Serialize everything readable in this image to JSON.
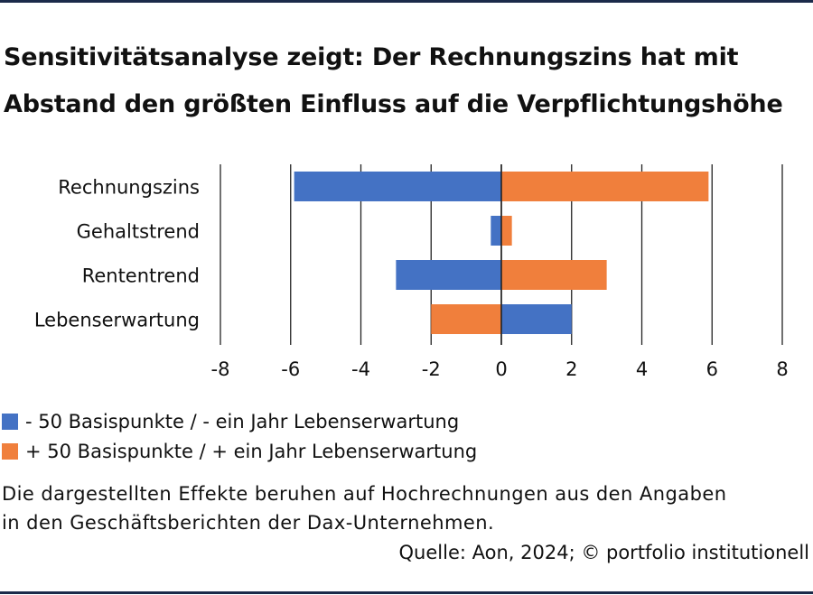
{
  "title": {
    "line1": "Sensitivitätsanalyse zeigt: Der Rechnungszins hat mit",
    "line2": "Abstand den größten Einfluss auf die Verpflichtungshöhe"
  },
  "colors": {
    "blue": "#4472C4",
    "orange": "#F07F3C",
    "rule": "#1B2A4A",
    "grid": "#222222"
  },
  "chart_data": {
    "type": "bar",
    "orientation": "horizontal",
    "title": "",
    "xlabel": "",
    "ylabel": "",
    "categories": [
      "Rechnungszins",
      "Gehaltstrend",
      "Rententrend",
      "Lebenserwartung"
    ],
    "xlim": [
      -8,
      8
    ],
    "xticks": [
      -8,
      -6,
      -4,
      -2,
      0,
      2,
      4,
      6,
      8
    ],
    "xtick_labels": [
      "-8",
      "-6",
      "-4",
      "-2",
      "0",
      "2",
      "4",
      "6",
      "8"
    ],
    "grid": "vertical",
    "legend_position": "bottom-left",
    "series": [
      {
        "name": "- 50 Basispunkte / - ein Jahr Lebenserwartung",
        "color": "#4472C4",
        "values": [
          -5.9,
          -0.3,
          -3.0,
          2.0
        ]
      },
      {
        "name": "+ 50 Basispunkte / + ein Jahr Lebenserwartung",
        "color": "#F07F3C",
        "values": [
          5.9,
          0.3,
          3.0,
          -2.0
        ]
      }
    ]
  },
  "note": {
    "line1": "Die dargestellten Effekte beruhen auf Hochrechnungen aus den Angaben",
    "line2": "in den Geschäftsberichten der Dax-Unternehmen."
  },
  "source": "Quelle: Aon, 2024; © portfolio institutionell"
}
